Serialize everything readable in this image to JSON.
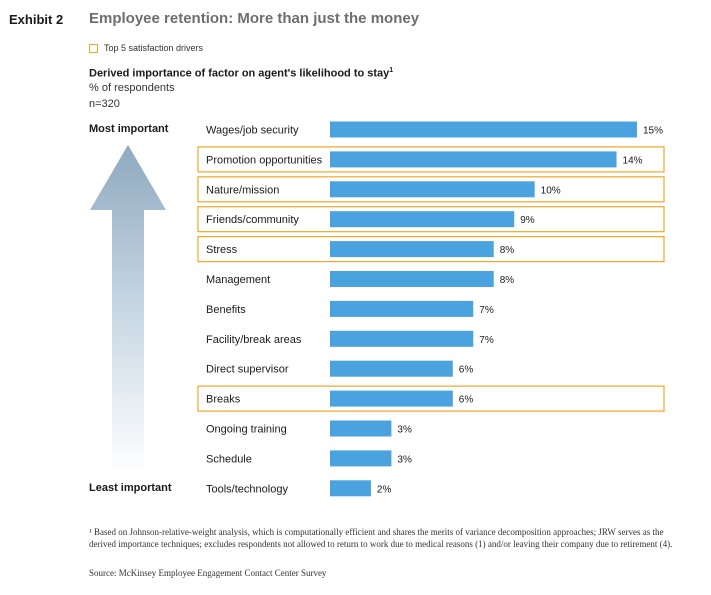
{
  "exhibit_label": "Exhibit 2",
  "title": "Employee retention: More than just the money",
  "legend": {
    "label": "Top 5 satisfaction drivers",
    "color": "#f5a623"
  },
  "subtitle": "Derived importance of factor on agent's likelihood to stay",
  "subtitle_note": "1",
  "units": "% of respondents",
  "sample": "n=320",
  "scale_labels": {
    "most": "Most important",
    "least": "Least important"
  },
  "colors": {
    "bar": "#4aa3df",
    "highlight": "#f5a623"
  },
  "chart_data": {
    "type": "bar",
    "orientation": "horizontal",
    "title": "Derived importance of factor on agent's likelihood to stay",
    "xlabel": "% of respondents",
    "xlim": [
      0,
      15
    ],
    "categories": [
      "Wages/job security",
      "Promotion opportunities",
      "Nature/mission",
      "Friends/community",
      "Stress",
      "Management",
      "Benefits",
      "Facility/break areas",
      "Direct supervisor",
      "Breaks",
      "Ongoing training",
      "Schedule",
      "Tools/technology"
    ],
    "values": [
      15,
      14,
      10,
      9,
      8,
      8,
      7,
      7,
      6,
      6,
      3,
      3,
      2
    ],
    "value_labels": [
      "15%",
      "14%",
      "10%",
      "9%",
      "8%",
      "8%",
      "7%",
      "7%",
      "6%",
      "6%",
      "3%",
      "3%",
      "2%"
    ],
    "highlighted": [
      false,
      true,
      true,
      true,
      true,
      false,
      false,
      false,
      false,
      true,
      false,
      false,
      false
    ]
  },
  "footnote": "¹ Based on Johnson-relative-weight analysis, which is computationally efficient and shares the merits of variance decomposition approaches; JRW serves as the derived importance techniques; excludes respondents not allowed to return to work due to medical reasons (1) and/or leaving their company due to retirement (4).",
  "source": "Source: McKinsey Employee Engagement Contact Center Survey"
}
